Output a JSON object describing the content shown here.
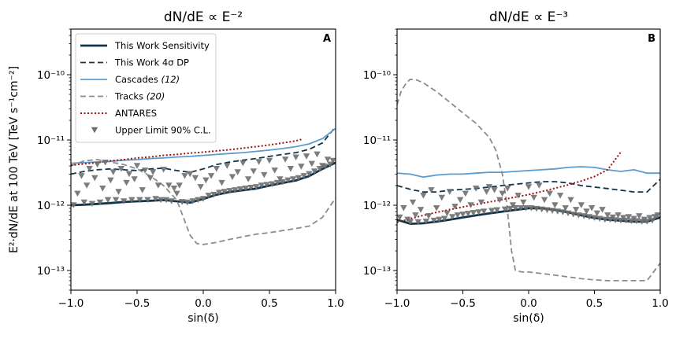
{
  "figure": {
    "ylabel": "E²·dN/dE at 100 TeV [TeV s⁻¹cm⁻²]"
  },
  "colors": {
    "sensitivity": "#12344a",
    "dp": "#12344a",
    "cascades": "#5b9bd0",
    "tracks": "#8c8c8c",
    "antares": "#a01010",
    "upper_limit": "#6e6e6e"
  },
  "legend": {
    "items": [
      {
        "key": "sensitivity",
        "label": "This Work Sensitivity"
      },
      {
        "key": "dp",
        "label": "This Work 4σ DP"
      },
      {
        "key": "cascades",
        "label": "Cascades ",
        "ref": "(12)"
      },
      {
        "key": "tracks",
        "label": "Tracks ",
        "ref": "(20)"
      },
      {
        "key": "antares",
        "label": "ANTARES"
      },
      {
        "key": "upper_limit",
        "label": "Upper Limit 90% C.L."
      }
    ]
  },
  "chart_data": [
    {
      "type": "line",
      "panel": "A",
      "title": "dN/dE ∝ E⁻²",
      "xlabel": "sin(δ)",
      "ylabel": "E²·dN/dE at 100 TeV [TeV s⁻¹cm⁻²]",
      "xlim": [
        -1.0,
        1.0
      ],
      "ylim": [
        5e-14,
        5e-10
      ],
      "yscale": "log",
      "legend_position": "top-left",
      "xticks": [
        "−1.0",
        "−0.5",
        "0.0",
        "0.5",
        "1.0"
      ],
      "yticks": [
        {
          "value": 1e-13,
          "label": "10⁻¹³"
        },
        {
          "value": 1e-12,
          "label": "10⁻¹²"
        },
        {
          "value": 1e-11,
          "label": "10⁻¹¹"
        },
        {
          "value": 1e-10,
          "label": "10⁻¹⁰"
        }
      ],
      "series": [
        {
          "name": "This Work Sensitivity",
          "key": "sensitivity",
          "x": [
            -1.0,
            -0.9,
            -0.8,
            -0.7,
            -0.6,
            -0.5,
            -0.4,
            -0.3,
            -0.2,
            -0.1,
            0.0,
            0.1,
            0.2,
            0.3,
            0.4,
            0.5,
            0.6,
            0.7,
            0.8,
            0.9,
            1.0
          ],
          "y": [
            1e-12,
            1.02e-12,
            1.05e-12,
            1.08e-12,
            1.12e-12,
            1.15e-12,
            1.17e-12,
            1.2e-12,
            1.15e-12,
            1.1e-12,
            1.25e-12,
            1.45e-12,
            1.6e-12,
            1.7e-12,
            1.8e-12,
            2e-12,
            2.2e-12,
            2.4e-12,
            2.8e-12,
            3.6e-12,
            4.5e-12
          ]
        },
        {
          "name": "This Work 4σ DP",
          "key": "dp",
          "x": [
            -1.0,
            -0.9,
            -0.8,
            -0.7,
            -0.6,
            -0.5,
            -0.4,
            -0.3,
            -0.2,
            -0.1,
            0.0,
            0.1,
            0.2,
            0.3,
            0.4,
            0.5,
            0.6,
            0.7,
            0.8,
            0.9,
            1.0
          ],
          "y": [
            3e-12,
            3.3e-12,
            3.5e-12,
            3.6e-12,
            3.5e-12,
            3.4e-12,
            3.6e-12,
            3.7e-12,
            3.4e-12,
            3.2e-12,
            3.6e-12,
            4.2e-12,
            4.6e-12,
            4.9e-12,
            5.2e-12,
            5.6e-12,
            6e-12,
            6.4e-12,
            7.2e-12,
            9e-12,
            1.6e-11
          ]
        },
        {
          "name": "Cascades",
          "key": "cascades",
          "x": [
            -1.0,
            -0.9,
            -0.8,
            -0.7,
            -0.6,
            -0.5,
            -0.4,
            -0.3,
            -0.2,
            -0.1,
            0.0,
            0.1,
            0.2,
            0.3,
            0.4,
            0.5,
            0.6,
            0.7,
            0.8,
            0.9,
            1.0
          ],
          "y": [
            4.4e-12,
            4.5e-12,
            4.6e-12,
            4.7e-12,
            4.9e-12,
            5e-12,
            5.2e-12,
            5.3e-12,
            5.5e-12,
            5.6e-12,
            5.8e-12,
            6e-12,
            6.2e-12,
            6.4e-12,
            6.7e-12,
            7e-12,
            7.4e-12,
            7.9e-12,
            8.7e-12,
            1.05e-11,
            1.5e-11
          ]
        },
        {
          "name": "Tracks",
          "key": "tracks",
          "x": [
            -1.0,
            -0.9,
            -0.8,
            -0.7,
            -0.6,
            -0.5,
            -0.4,
            -0.3,
            -0.2,
            -0.15,
            -0.1,
            -0.05,
            0.0,
            0.1,
            0.2,
            0.3,
            0.4,
            0.5,
            0.6,
            0.7,
            0.8,
            0.9,
            1.0
          ],
          "y": [
            4e-12,
            4.8e-12,
            5e-12,
            4.6e-12,
            4.2e-12,
            3.6e-12,
            2.8e-12,
            2e-12,
            1.2e-12,
            6.5e-13,
            3.5e-13,
            2.6e-13,
            2.5e-13,
            2.7e-13,
            3e-13,
            3.3e-13,
            3.6e-13,
            3.8e-13,
            4.1e-13,
            4.4e-13,
            4.8e-13,
            6.5e-13,
            1.3e-12
          ]
        },
        {
          "name": "ANTARES",
          "key": "antares",
          "x": [
            -1.0,
            -0.9,
            -0.8,
            -0.7,
            -0.6,
            -0.5,
            -0.4,
            -0.3,
            -0.2,
            -0.1,
            0.0,
            0.1,
            0.2,
            0.3,
            0.4,
            0.5,
            0.6,
            0.7,
            0.75
          ],
          "y": [
            4.1e-12,
            4.3e-12,
            4.5e-12,
            4.8e-12,
            5e-12,
            5.3e-12,
            5.5e-12,
            5.8e-12,
            6e-12,
            6.3e-12,
            6.5e-12,
            6.8e-12,
            7.1e-12,
            7.5e-12,
            7.9e-12,
            8.4e-12,
            9e-12,
            9.7e-12,
            1.03e-11
          ]
        },
        {
          "name": "Upper Limit 90% C.L.",
          "key": "upper_limit",
          "scatter": true,
          "x": [
            -0.98,
            -0.95,
            -0.92,
            -0.9,
            -0.88,
            -0.86,
            -0.84,
            -0.82,
            -0.8,
            -0.78,
            -0.76,
            -0.74,
            -0.72,
            -0.7,
            -0.68,
            -0.66,
            -0.64,
            -0.62,
            -0.6,
            -0.58,
            -0.56,
            -0.54,
            -0.52,
            -0.5,
            -0.48,
            -0.46,
            -0.44,
            -0.42,
            -0.4,
            -0.38,
            -0.36,
            -0.34,
            -0.32,
            -0.3,
            -0.28,
            -0.26,
            -0.24,
            -0.22,
            -0.2,
            -0.18,
            -0.16,
            -0.14,
            -0.12,
            -0.1,
            -0.08,
            -0.06,
            -0.04,
            -0.02,
            0.0,
            0.02,
            0.04,
            0.06,
            0.08,
            0.1,
            0.12,
            0.14,
            0.16,
            0.18,
            0.2,
            0.22,
            0.24,
            0.26,
            0.28,
            0.3,
            0.32,
            0.34,
            0.36,
            0.38,
            0.4,
            0.42,
            0.44,
            0.46,
            0.48,
            0.5,
            0.52,
            0.54,
            0.56,
            0.58,
            0.6,
            0.62,
            0.64,
            0.66,
            0.68,
            0.7,
            0.72,
            0.74,
            0.76,
            0.78,
            0.8,
            0.82,
            0.84,
            0.86,
            0.88,
            0.9,
            0.92,
            0.94,
            0.96,
            0.98
          ],
          "y": [
            1e-12,
            1.5e-12,
            2.8e-12,
            1.1e-12,
            2e-12,
            3.6e-12,
            1.05e-12,
            2.6e-12,
            4.2e-12,
            1.1e-12,
            1.8e-12,
            4.5e-12,
            1.2e-12,
            2.4e-12,
            3.2e-12,
            1.2e-12,
            1.6e-12,
            3.6e-12,
            1.15e-12,
            2.2e-12,
            3e-12,
            1.2e-12,
            2.5e-12,
            4e-12,
            1.2e-12,
            1.7e-12,
            3.4e-12,
            1.2e-12,
            2.6e-12,
            3.2e-12,
            1.25e-12,
            2e-12,
            1.2e-12,
            3.5e-12,
            1.2e-12,
            2e-12,
            1.15e-12,
            1.8e-12,
            1.5e-12,
            2e-12,
            1.12e-12,
            2.8e-12,
            1.1e-12,
            3e-12,
            1.15e-12,
            2.6e-12,
            1.2e-12,
            1.9e-12,
            1.25e-12,
            2.4e-12,
            1.4e-12,
            2.8e-12,
            1.45e-12,
            3.6e-12,
            1.55e-12,
            2.2e-12,
            1.6e-12,
            4e-12,
            1.65e-12,
            2.7e-12,
            1.7e-12,
            3.2e-12,
            1.75e-12,
            4.4e-12,
            1.8e-12,
            2.5e-12,
            1.85e-12,
            3.3e-12,
            1.9e-12,
            4.6e-12,
            2e-12,
            2.9e-12,
            2.05e-12,
            4.8e-12,
            2.1e-12,
            3.4e-12,
            2.2e-12,
            2.5e-12,
            2.25e-12,
            5e-12,
            2.4e-12,
            3.6e-12,
            2.5e-12,
            5.4e-12,
            2.6e-12,
            3.9e-12,
            2.8e-12,
            5.6e-12,
            3e-12,
            4.3e-12,
            3.3e-12,
            6e-12,
            3.6e-12,
            4e-12,
            3.9e-12,
            5e-12,
            4.2e-12,
            4.8e-12
          ]
        }
      ]
    },
    {
      "type": "line",
      "panel": "B",
      "title": "dN/dE ∝ E⁻³",
      "xlabel": "sin(δ)",
      "ylabel": "",
      "xlim": [
        -1.0,
        1.0
      ],
      "ylim": [
        5e-14,
        5e-10
      ],
      "yscale": "log",
      "xticks": [
        "−1.0",
        "−0.5",
        "0.0",
        "0.5",
        "1.0"
      ],
      "yticks": [
        {
          "value": 1e-13,
          "label": "10⁻¹³"
        },
        {
          "value": 1e-12,
          "label": "10⁻¹²"
        },
        {
          "value": 1e-11,
          "label": "10⁻¹¹"
        },
        {
          "value": 1e-10,
          "label": "10⁻¹⁰"
        }
      ],
      "series": [
        {
          "name": "This Work Sensitivity",
          "key": "sensitivity",
          "x": [
            -1.0,
            -0.9,
            -0.8,
            -0.7,
            -0.6,
            -0.5,
            -0.4,
            -0.3,
            -0.2,
            -0.1,
            0.0,
            0.1,
            0.2,
            0.3,
            0.4,
            0.5,
            0.6,
            0.7,
            0.8,
            0.9,
            1.0
          ],
          "y": [
            6e-13,
            5.2e-13,
            5.3e-13,
            5.6e-13,
            6e-13,
            6.5e-13,
            7e-13,
            7.5e-13,
            8e-13,
            8.5e-13,
            9e-13,
            9e-13,
            8.5e-13,
            7.8e-13,
            7e-13,
            6.4e-13,
            6e-13,
            5.8e-13,
            5.6e-13,
            5.6e-13,
            6.5e-13
          ]
        },
        {
          "name": "This Work 4σ DP",
          "key": "dp",
          "x": [
            -1.0,
            -0.9,
            -0.8,
            -0.7,
            -0.6,
            -0.5,
            -0.4,
            -0.3,
            -0.2,
            -0.1,
            0.0,
            0.1,
            0.2,
            0.3,
            0.4,
            0.5,
            0.6,
            0.7,
            0.8,
            0.9,
            1.0
          ],
          "y": [
            2e-12,
            1.75e-12,
            1.6e-12,
            1.6e-12,
            1.7e-12,
            1.75e-12,
            1.8e-12,
            1.9e-12,
            2e-12,
            2.1e-12,
            2.2e-12,
            2.3e-12,
            2.3e-12,
            2.2e-12,
            2e-12,
            1.9e-12,
            1.8e-12,
            1.7e-12,
            1.6e-12,
            1.6e-12,
            2.5e-12
          ]
        },
        {
          "name": "Cascades",
          "key": "cascades",
          "x": [
            -1.0,
            -0.9,
            -0.8,
            -0.7,
            -0.6,
            -0.5,
            -0.4,
            -0.3,
            -0.2,
            -0.1,
            0.0,
            0.1,
            0.2,
            0.3,
            0.4,
            0.5,
            0.6,
            0.7,
            0.8,
            0.9,
            1.0
          ],
          "y": [
            3.1e-12,
            3e-12,
            2.7e-12,
            2.9e-12,
            3e-12,
            3e-12,
            3.1e-12,
            3.2e-12,
            3.2e-12,
            3.3e-12,
            3.4e-12,
            3.5e-12,
            3.6e-12,
            3.8e-12,
            3.9e-12,
            3.8e-12,
            3.5e-12,
            3.3e-12,
            3.5e-12,
            3.1e-12,
            3.1e-12
          ]
        },
        {
          "name": "Tracks",
          "key": "tracks",
          "x": [
            -1.0,
            -0.97,
            -0.93,
            -0.9,
            -0.85,
            -0.8,
            -0.7,
            -0.6,
            -0.5,
            -0.4,
            -0.3,
            -0.25,
            -0.2,
            -0.17,
            -0.15,
            -0.13,
            -0.1,
            -0.05,
            0.0,
            0.1,
            0.2,
            0.3,
            0.4,
            0.5,
            0.6,
            0.7,
            0.8,
            0.9,
            1.0
          ],
          "y": [
            3.5e-11,
            5.5e-11,
            7.5e-11,
            8.5e-11,
            8.3e-11,
            7.5e-11,
            5.5e-11,
            3.8e-11,
            2.6e-11,
            1.8e-11,
            1.1e-11,
            7e-12,
            3e-12,
            1.2e-12,
            5e-13,
            2e-13,
            1e-13,
            9.5e-14,
            9.5e-14,
            9e-14,
            8.5e-14,
            8e-14,
            7.5e-14,
            7.2e-14,
            7e-14,
            7e-14,
            7e-14,
            7e-14,
            1.3e-13
          ]
        },
        {
          "name": "ANTARES",
          "key": "antares",
          "x": [
            -1.0,
            -0.9,
            -0.8,
            -0.7,
            -0.6,
            -0.5,
            -0.4,
            -0.3,
            -0.2,
            -0.1,
            0.0,
            0.1,
            0.2,
            0.3,
            0.4,
            0.5,
            0.6,
            0.7
          ],
          "y": [
            5.5e-13,
            6.2e-13,
            7e-13,
            7.8e-13,
            8.6e-13,
            9.4e-13,
            1.03e-12,
            1.12e-12,
            1.22e-12,
            1.33e-12,
            1.46e-12,
            1.62e-12,
            1.82e-12,
            2.05e-12,
            2.35e-12,
            2.75e-12,
            3.5e-12,
            6.5e-12
          ]
        },
        {
          "name": "Upper Limit 90% C.L.",
          "key": "upper_limit",
          "scatter": true,
          "x": [
            -0.98,
            -0.95,
            -0.92,
            -0.9,
            -0.88,
            -0.86,
            -0.84,
            -0.82,
            -0.8,
            -0.78,
            -0.76,
            -0.74,
            -0.72,
            -0.7,
            -0.68,
            -0.66,
            -0.64,
            -0.62,
            -0.6,
            -0.58,
            -0.56,
            -0.54,
            -0.52,
            -0.5,
            -0.48,
            -0.46,
            -0.44,
            -0.42,
            -0.4,
            -0.38,
            -0.36,
            -0.34,
            -0.32,
            -0.3,
            -0.28,
            -0.26,
            -0.24,
            -0.22,
            -0.2,
            -0.18,
            -0.16,
            -0.14,
            -0.12,
            -0.1,
            -0.08,
            -0.06,
            -0.04,
            -0.02,
            0.0,
            0.02,
            0.04,
            0.06,
            0.08,
            0.1,
            0.12,
            0.14,
            0.16,
            0.18,
            0.2,
            0.22,
            0.24,
            0.26,
            0.28,
            0.3,
            0.32,
            0.34,
            0.36,
            0.38,
            0.4,
            0.42,
            0.44,
            0.46,
            0.48,
            0.5,
            0.52,
            0.54,
            0.56,
            0.58,
            0.6,
            0.62,
            0.64,
            0.66,
            0.68,
            0.7,
            0.72,
            0.74,
            0.76,
            0.78,
            0.8,
            0.82,
            0.84,
            0.86,
            0.88,
            0.9,
            0.92,
            0.94,
            0.96,
            0.98
          ],
          "y": [
            6.5e-13,
            9e-13,
            6e-13,
            5.5e-13,
            1.1e-12,
            7e-13,
            5.5e-13,
            8.5e-13,
            1.4e-12,
            5.6e-13,
            6.8e-13,
            1.7e-12,
            5.8e-13,
            9e-13,
            6e-13,
            1.3e-12,
            6.2e-13,
            7.5e-13,
            1.6e-12,
            6.6e-13,
            9.5e-13,
            7e-13,
            1.2e-12,
            7.2e-13,
            1.5e-12,
            7.4e-13,
            1e-12,
            7.6e-13,
            1.8e-12,
            7.8e-13,
            1.1e-12,
            8e-13,
            1.6e-12,
            1.9e-12,
            8.2e-13,
            1.7e-12,
            8.4e-13,
            1.2e-12,
            1.5e-12,
            8.6e-13,
            1.8e-12,
            8.8e-13,
            1e-12,
            9e-13,
            1.4e-12,
            9e-13,
            1.1e-12,
            9e-13,
            1.9e-12,
            9e-13,
            1.3e-12,
            8.8e-13,
            2e-12,
            8.6e-13,
            1.2e-12,
            8.4e-13,
            1.5e-12,
            8.2e-13,
            1e-12,
            8e-13,
            1.4e-12,
            7.8e-13,
            9e-13,
            7.5e-13,
            1.2e-12,
            7.2e-13,
            8.5e-13,
            7e-13,
            1e-12,
            6.8e-13,
            8e-13,
            6.6e-13,
            9e-13,
            6.4e-13,
            7.5e-13,
            6.2e-13,
            8.5e-13,
            6e-13,
            7e-13,
            6e-13,
            6.5e-13,
            5.9e-13,
            7e-13,
            5.8e-13,
            6.4e-13,
            5.8e-13,
            6.6e-13,
            5.7e-13,
            6.2e-13,
            5.7e-13,
            6.8e-13,
            5.6e-13,
            6e-13,
            5.6e-13,
            6.4e-13,
            5.8e-13,
            6.6e-13,
            7e-13
          ]
        }
      ]
    }
  ]
}
